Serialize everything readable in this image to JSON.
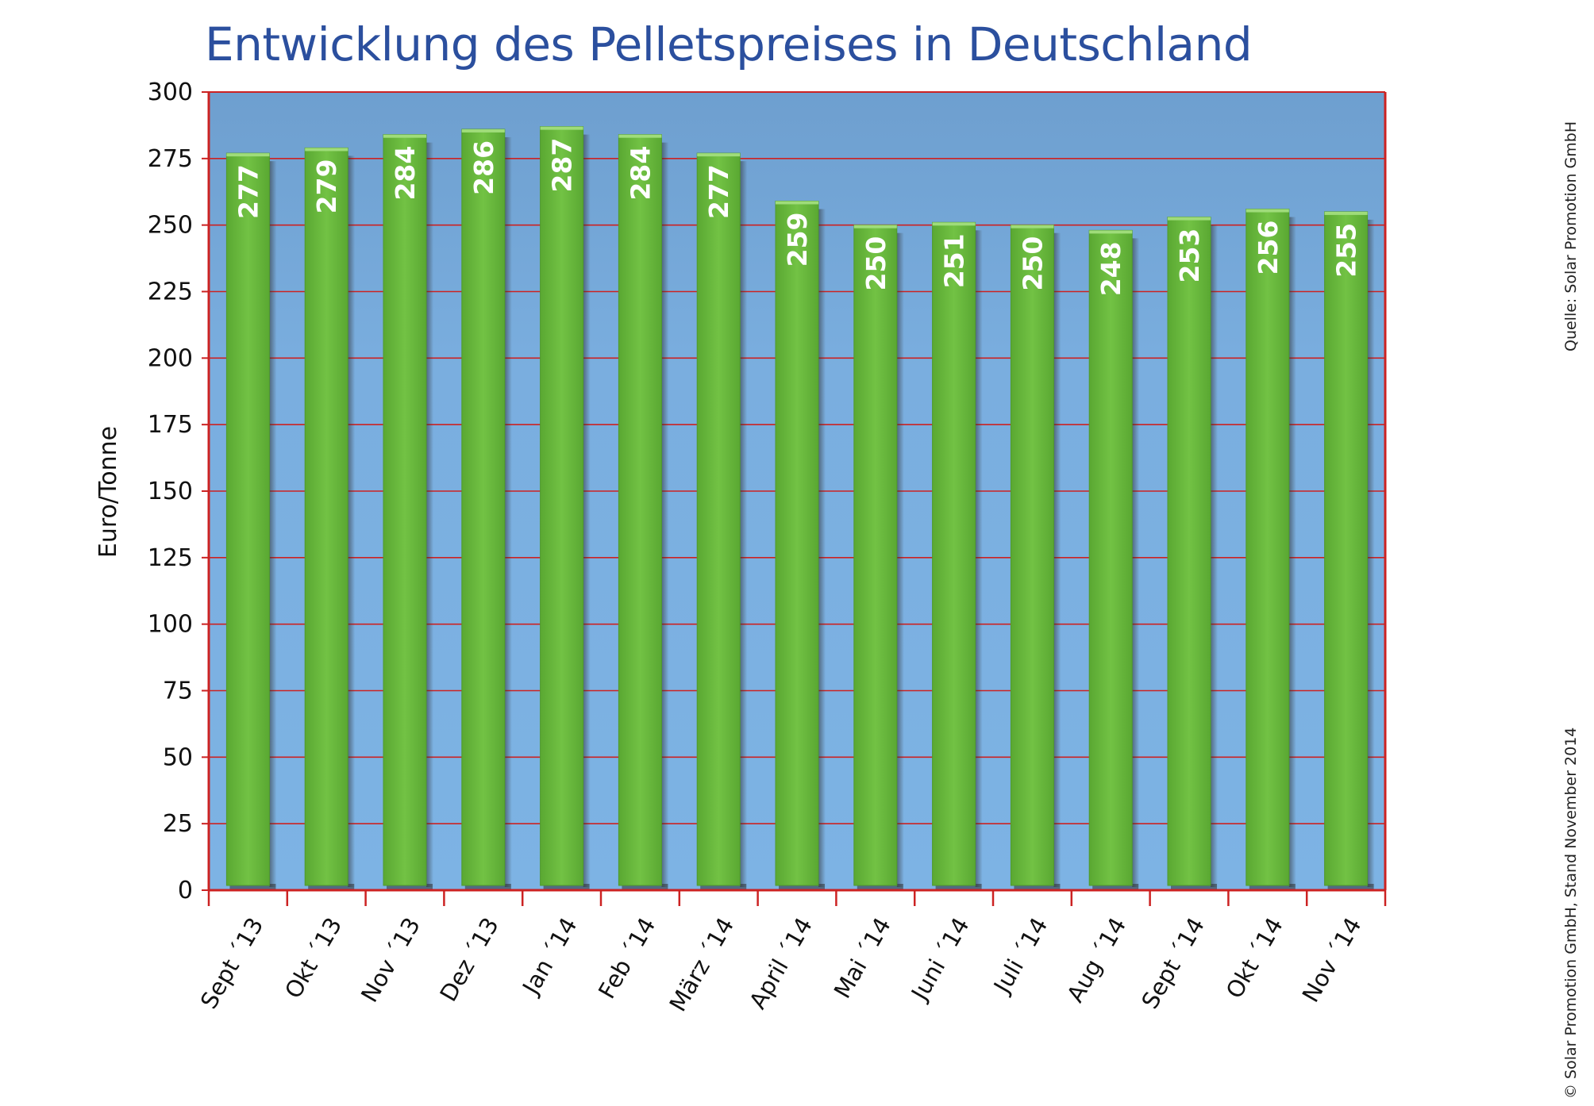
{
  "chart_data": {
    "type": "bar",
    "title": "Entwicklung des Pelletspreises in Deutschland",
    "ylabel": "Euro/Tonne",
    "xlabel": "",
    "ylim": [
      0,
      300
    ],
    "yticks": [
      0,
      25,
      50,
      75,
      100,
      125,
      150,
      175,
      200,
      225,
      250,
      275,
      300
    ],
    "grid": true,
    "categories": [
      "Sept ´13",
      "Okt ´13",
      "Nov ´13",
      "Dez ´13",
      "Jan ´14",
      "Feb ´14",
      "März ´14",
      "April ´14",
      "Mai ´14",
      "Juni ´14",
      "Juli ´14",
      "Aug ´14",
      "Sept ´14",
      "Okt ´14",
      "Nov ´14"
    ],
    "values": [
      277,
      279,
      284,
      286,
      287,
      284,
      277,
      259,
      250,
      251,
      250,
      248,
      253,
      256,
      255
    ],
    "colors": {
      "bar": "#6bbd3f",
      "bar_shade": "#3d7a1f",
      "plot_bg": "#7aaedd",
      "grid": "#cc2222",
      "title": "#2b4f9e"
    }
  },
  "notes": {
    "source": "Quelle: Solar Promotion GmbH",
    "copyright": "© Solar Promotion GmbH, Stand November 2014"
  }
}
